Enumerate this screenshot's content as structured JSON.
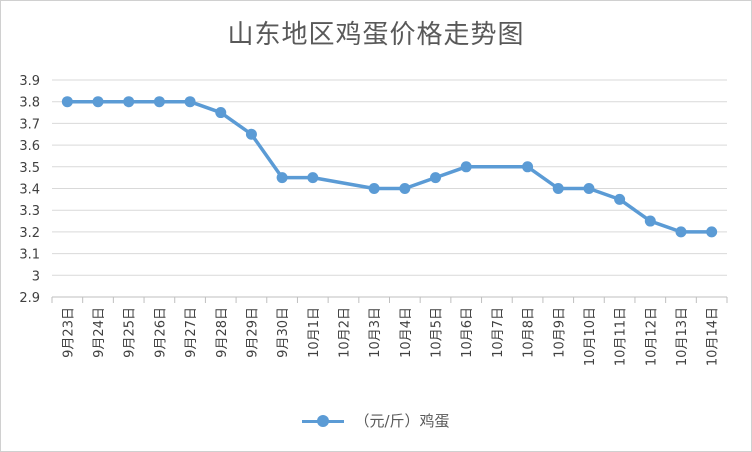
{
  "chart_data": {
    "type": "line",
    "title": "山东地区鸡蛋价格走势图",
    "categories": [
      "9月23日",
      "9月24日",
      "9月25日",
      "9月26日",
      "9月27日",
      "9月28日",
      "9月29日",
      "9月30日",
      "10月1日",
      "10月2日",
      "10月3日",
      "10月4日",
      "10月5日",
      "10月6日",
      "10月7日",
      "10月8日",
      "10月9日",
      "10月10日",
      "10月11日",
      "10月12日",
      "10月13日",
      "10月14日"
    ],
    "series": [
      {
        "name": "（元/斤）鸡蛋",
        "values": [
          3.8,
          3.8,
          3.8,
          3.8,
          3.8,
          3.75,
          3.65,
          3.45,
          3.45,
          null,
          3.4,
          3.4,
          3.45,
          3.5,
          null,
          3.5,
          3.4,
          3.4,
          3.35,
          3.25,
          3.2,
          3.2
        ],
        "color": "#5b9bd5"
      }
    ],
    "ylim": [
      2.9,
      3.9
    ],
    "yticks": [
      "2.9",
      "3",
      "3.1",
      "3.2",
      "3.3",
      "3.4",
      "3.5",
      "3.6",
      "3.7",
      "3.8",
      "3.9"
    ],
    "grid": true,
    "legend_position": "bottom"
  }
}
